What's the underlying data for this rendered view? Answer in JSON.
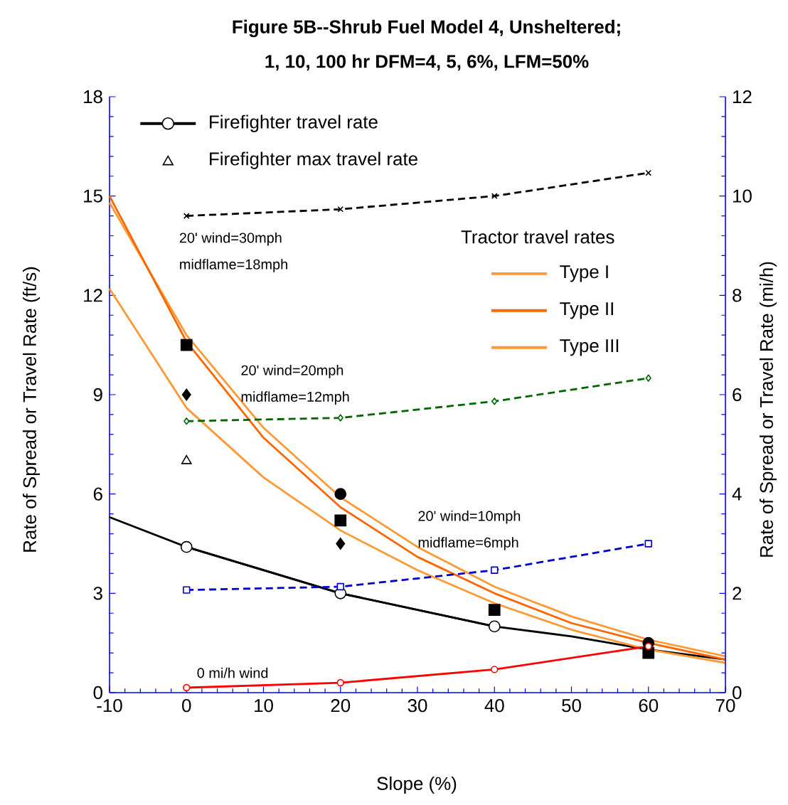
{
  "chart_data": {
    "type": "line",
    "title": "Figure 5B--Shrub Fuel Model 4, Unsheltered;",
    "subtitle": "1, 10, 100 hr DFM=4, 5, 6%, LFM=50%",
    "xlabel": "Slope (%)",
    "ylabel": "Rate of Spread or Travel Rate (ft/s)",
    "y2label": "Rate of Spread or Travel Rate (mi/h)",
    "legend_title": "Tractor travel rates",
    "legend": "top",
    "grid": false,
    "xlim": [
      -10,
      70
    ],
    "xticks": [
      -10,
      0,
      10,
      20,
      30,
      40,
      50,
      60,
      70
    ],
    "ylim": [
      0,
      18
    ],
    "yticks": [
      0,
      3,
      6,
      9,
      12,
      15,
      18
    ],
    "y2lim": [
      0,
      12
    ],
    "y2ticks": [
      0,
      2,
      4,
      6,
      8,
      10,
      12
    ],
    "series": [
      {
        "name": "Firefighter travel rate",
        "color": "#000000",
        "x": [
          0,
          20,
          40
        ],
        "values": [
          4.4,
          3.0,
          2.0
        ],
        "marker": "circle",
        "line_style": "solid"
      },
      {
        "color": "#000000",
        "x": [
          -10,
          0,
          10,
          20,
          30,
          40,
          50,
          60,
          70
        ],
        "values": [
          5.3,
          4.4,
          3.7,
          3.0,
          2.5,
          2.0,
          1.7,
          1.3,
          1.0
        ],
        "marker": "none",
        "line_style": "solid"
      },
      {
        "name": "Firefighter max travel rate",
        "type": "scatter",
        "color": "#000000",
        "x": [
          0
        ],
        "values": [
          7.0
        ],
        "marker": "triangle"
      },
      {
        "name": "Type I",
        "color": "#ff9933",
        "x": [
          -10,
          0,
          10,
          20,
          30,
          40,
          50,
          60,
          70
        ],
        "values": [
          14.8,
          10.8,
          8.0,
          5.9,
          4.4,
          3.2,
          2.3,
          1.6,
          1.1
        ],
        "marker": "none",
        "line_style": "solid"
      },
      {
        "name": "Type II",
        "color": "#ff6600",
        "x": [
          -10,
          0,
          10,
          20,
          30,
          40,
          50,
          60,
          70
        ],
        "values": [
          15.0,
          10.6,
          7.7,
          5.6,
          4.1,
          3.0,
          2.1,
          1.5,
          1.0
        ],
        "marker": "none",
        "line_style": "solid"
      },
      {
        "name": "Type III",
        "color": "#ff9933",
        "x": [
          -10,
          0,
          10,
          20,
          30,
          40,
          50,
          60,
          70
        ],
        "values": [
          12.2,
          8.6,
          6.5,
          4.9,
          3.7,
          2.7,
          1.9,
          1.3,
          0.9
        ],
        "marker": "none",
        "line_style": "solid"
      },
      {
        "type": "scatter",
        "color": "#000000",
        "x": [
          20,
          60
        ],
        "values": [
          6.0,
          1.5
        ],
        "marker": "circle"
      },
      {
        "type": "scatter",
        "color": "#000000",
        "x": [
          0,
          20,
          40,
          60
        ],
        "values": [
          10.5,
          5.2,
          2.5,
          1.2
        ],
        "marker": "square"
      },
      {
        "type": "scatter",
        "color": "#000000",
        "x": [
          0,
          20
        ],
        "values": [
          9.0,
          4.5
        ],
        "marker": "diamond"
      },
      {
        "color": "#000000",
        "x": [
          0,
          20,
          40,
          60
        ],
        "values": [
          14.4,
          14.6,
          15.0,
          15.7
        ],
        "marker": "cross",
        "line_style": "dashed"
      },
      {
        "color": "#006600",
        "x": [
          0,
          20,
          40,
          60
        ],
        "values": [
          8.2,
          8.3,
          8.8,
          9.5
        ],
        "marker": "diamond",
        "line_style": "dashed"
      },
      {
        "color": "#0000cc",
        "x": [
          0,
          20,
          40,
          60
        ],
        "values": [
          3.1,
          3.2,
          3.7,
          4.5
        ],
        "marker": "square",
        "line_style": "dashed"
      },
      {
        "color": "#ff0000",
        "x": [
          0,
          20,
          40,
          60
        ],
        "values": [
          0.15,
          0.3,
          0.7,
          1.4
        ],
        "marker": "circle",
        "line_style": "solid"
      }
    ],
    "annotations": [
      "20' wind=30mph",
      "midflame=18mph",
      "20' wind=20mph",
      "midflame=12mph",
      "20' wind=10mph",
      "midflame=6mph",
      "0 mi/h wind"
    ]
  }
}
